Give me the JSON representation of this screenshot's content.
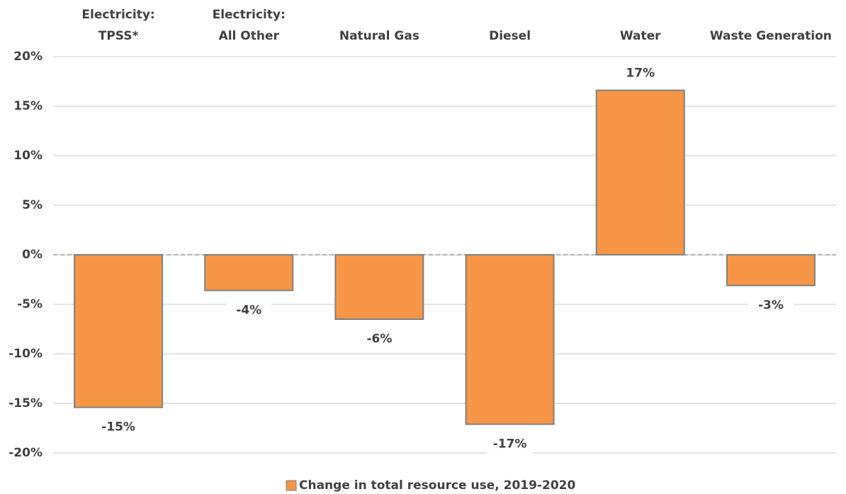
{
  "chart_data": {
    "type": "bar",
    "categories": [
      "Electricity:\nTPSS*",
      "Electricity:\nAll Other",
      "Natural Gas",
      "Diesel",
      "Water",
      "Waste Generation"
    ],
    "series": [
      {
        "name": "Change in total resource use, 2019-2020",
        "color": "#f79646",
        "values": [
          -15.4,
          -3.6,
          -6.5,
          -17.1,
          16.6,
          -3.1
        ],
        "value_labels": [
          "-15%",
          "-4%",
          "-6%",
          "-17%",
          "17%",
          "-3%"
        ]
      }
    ],
    "ylim": [
      -20,
      20
    ],
    "yticks": [
      {
        "value": -20,
        "label": "-20%"
      },
      {
        "value": -15,
        "label": "-15%"
      },
      {
        "value": -10,
        "label": "-10%"
      },
      {
        "value": -5,
        "label": "-5%"
      },
      {
        "value": 0,
        "label": "0%"
      },
      {
        "value": 5,
        "label": "5%"
      },
      {
        "value": 10,
        "label": "10%"
      },
      {
        "value": 15,
        "label": "15%"
      },
      {
        "value": 20,
        "label": "20%"
      }
    ],
    "grid": true,
    "legend": "bottom"
  }
}
